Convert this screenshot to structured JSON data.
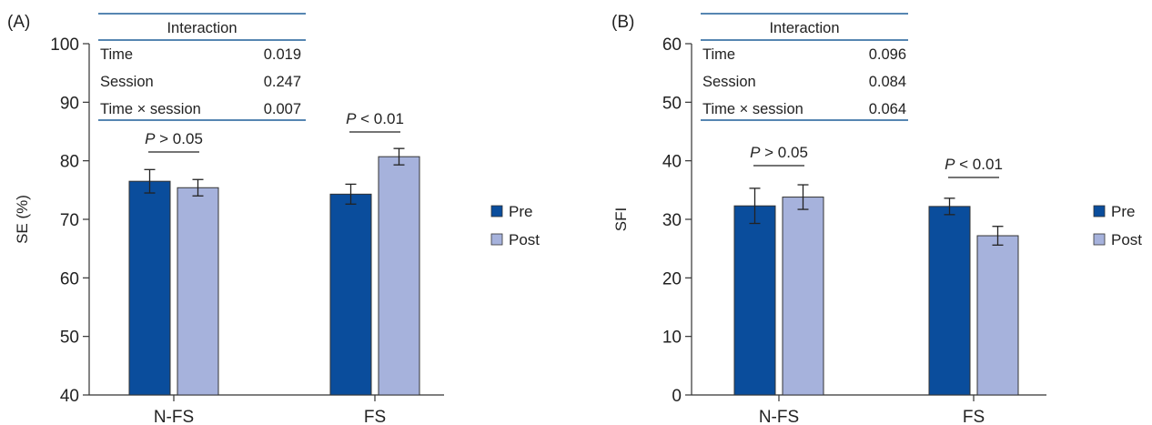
{
  "colors": {
    "pre": "#0a4d9c",
    "post": "#a6b2dc"
  },
  "legend": [
    {
      "name": "Pre",
      "color": "#0a4d9c"
    },
    {
      "name": "Post",
      "color": "#a6b2dc"
    }
  ],
  "chart_data": [
    {
      "panel_label": "(A)",
      "type": "bar",
      "ylabel": "SE (%)",
      "ylim": [
        40,
        100
      ],
      "yticks": [
        40,
        50,
        60,
        70,
        80,
        90,
        100
      ],
      "categories": [
        "N-FS",
        "FS"
      ],
      "series": [
        {
          "name": "Pre",
          "values": [
            76.5,
            74.3
          ],
          "errors": [
            2.0,
            1.7
          ]
        },
        {
          "name": "Post",
          "values": [
            75.4,
            80.7
          ],
          "errors": [
            1.4,
            1.4
          ]
        }
      ],
      "annotations": [
        {
          "category": "N-FS",
          "p_italic": "P",
          "p_rest": " > 0.05"
        },
        {
          "category": "FS",
          "p_italic": "P",
          "p_rest": " < 0.01"
        }
      ],
      "table": {
        "title": "Interaction",
        "rows": [
          {
            "label": "Time",
            "value": "0.019"
          },
          {
            "label": "Session",
            "value": "0.247"
          },
          {
            "label": "Time × session",
            "value": "0.007"
          }
        ]
      },
      "grid": false,
      "legend_position": "right"
    },
    {
      "panel_label": "(B)",
      "type": "bar",
      "ylabel": "SFI",
      "ylim": [
        0,
        60
      ],
      "yticks": [
        0,
        10,
        20,
        30,
        40,
        50,
        60
      ],
      "categories": [
        "N-FS",
        "FS"
      ],
      "series": [
        {
          "name": "Pre",
          "values": [
            32.3,
            32.2
          ],
          "errors": [
            3.0,
            1.4
          ]
        },
        {
          "name": "Post",
          "values": [
            33.8,
            27.2
          ],
          "errors": [
            2.1,
            1.6
          ]
        }
      ],
      "annotations": [
        {
          "category": "N-FS",
          "p_italic": "P",
          "p_rest": " > 0.05"
        },
        {
          "category": "FS",
          "p_italic": "P",
          "p_rest": " < 0.01"
        }
      ],
      "table": {
        "title": "Interaction",
        "rows": [
          {
            "label": "Time",
            "value": "0.096"
          },
          {
            "label": "Session",
            "value": "0.084"
          },
          {
            "label": "Time × session",
            "value": "0.064"
          }
        ]
      },
      "grid": false,
      "legend_position": "right"
    }
  ]
}
